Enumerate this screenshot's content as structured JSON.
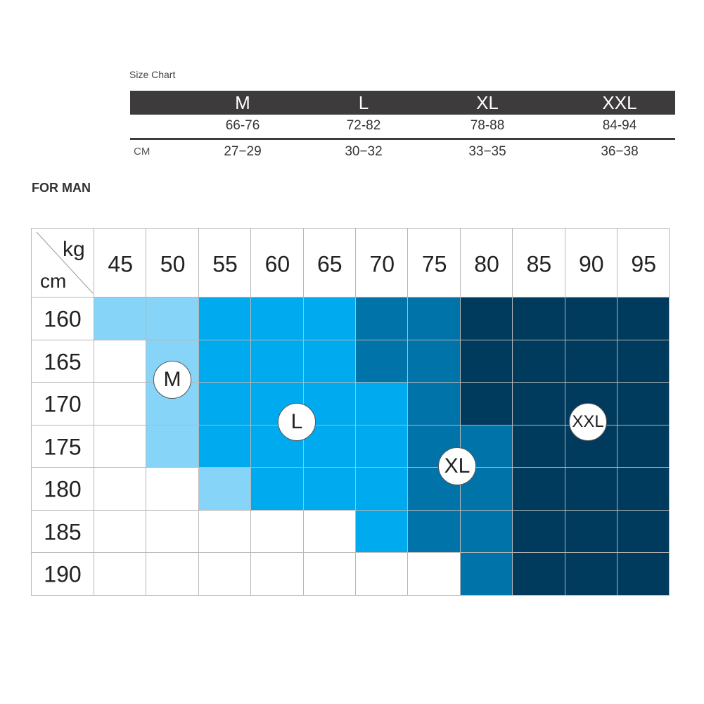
{
  "size_chart": {
    "caption": "Size Chart",
    "sizes": [
      "M",
      "L",
      "XL",
      "XXL"
    ],
    "waist_row": [
      "66-76",
      "72-82",
      "78-88",
      "84-94"
    ],
    "cm_label": "CM",
    "cm_row": [
      "27−29",
      "30−32",
      "33−35",
      "36−38"
    ]
  },
  "for_man_label": "FOR MAN",
  "grid": {
    "corner_kg": "kg",
    "corner_cm": "cm",
    "weights": [
      "45",
      "50",
      "55",
      "60",
      "65",
      "70",
      "75",
      "80",
      "85",
      "90",
      "95"
    ],
    "heights": [
      "160",
      "165",
      "170",
      "175",
      "180",
      "185",
      "190"
    ],
    "colors": {
      "M": "#86d4f7",
      "L": "#00aaee",
      "XL": "#0073a8",
      "XXL": "#003a5c",
      "none": "#ffffff"
    },
    "cells": [
      [
        "M",
        "M",
        "L",
        "L",
        "L",
        "XL",
        "XL",
        "XXL",
        "XXL",
        "XXL",
        "XXL"
      ],
      [
        "none",
        "M",
        "L",
        "L",
        "L",
        "XL",
        "XL",
        "XXL",
        "XXL",
        "XXL",
        "XXL"
      ],
      [
        "none",
        "M",
        "L",
        "L",
        "L",
        "L",
        "XL",
        "XXL",
        "XXL",
        "XXL",
        "XXL"
      ],
      [
        "none",
        "M",
        "L",
        "L",
        "L",
        "L",
        "XL",
        "XL",
        "XXL",
        "XXL",
        "XXL"
      ],
      [
        "none",
        "none",
        "M",
        "L",
        "L",
        "L",
        "XL",
        "XL",
        "XXL",
        "XXL",
        "XXL"
      ],
      [
        "none",
        "none",
        "none",
        "none",
        "none",
        "L",
        "XL",
        "XL",
        "XXL",
        "XXL",
        "XXL"
      ],
      [
        "none",
        "none",
        "none",
        "none",
        "none",
        "none",
        "none",
        "XL",
        "XXL",
        "XXL",
        "XXL"
      ]
    ],
    "bubbles": [
      {
        "label": "M"
      },
      {
        "label": "L"
      },
      {
        "label": "XL"
      },
      {
        "label": "XXL"
      }
    ]
  }
}
